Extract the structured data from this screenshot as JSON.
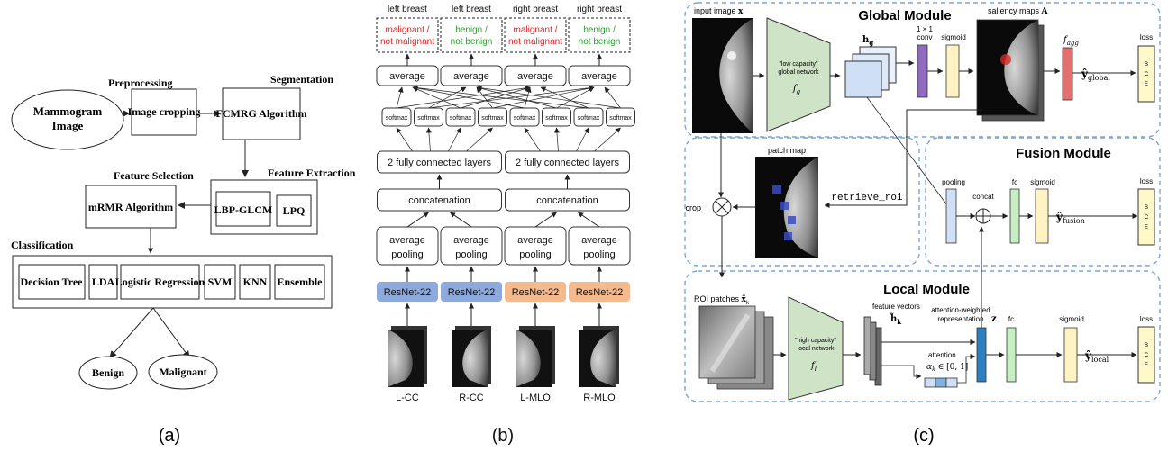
{
  "colors": {
    "red_text": "#d62728",
    "green_text": "#2ca02c",
    "resnet_blue": "#8ea9dc",
    "resnet_orange": "#f4b98c",
    "network_green": "#cfe3c6",
    "conv_purple": "#8e6bbf",
    "sigmoid_yellow": "#fff3c4",
    "fagg_red": "#e46f6f",
    "fc_green": "#c5efc3",
    "feature_blue": "#2b7fc1",
    "loss_yellow": "#fff8c8",
    "module_border": "#7aa6d9"
  },
  "panel_a": {
    "caption": "(a)",
    "mammogram": [
      "Mammogram",
      "Image"
    ],
    "preprocessing_label": "Preprocessing",
    "image_cropping": "Image cropping",
    "segmentation_label": "Segmentation",
    "fcmrg": "FCMRG Algorithm",
    "feature_extraction_label": "Feature Extraction",
    "lbp_glcm": "LBP-GLCM",
    "lpq": "LPQ",
    "feature_selection_label": "Feature Selection",
    "mrmr": "mRMR Algorithm",
    "classification_label": "Classification",
    "classifiers": [
      "Decision Tree",
      "LDA",
      "Logistic Regression",
      "SVM",
      "KNN",
      "Ensemble"
    ],
    "benign": "Benign",
    "malignant": "Malignant"
  },
  "panel_b": {
    "caption": "(b)",
    "top_titles": [
      "left breast",
      "left breast",
      "right breast",
      "right breast"
    ],
    "outputs": [
      {
        "line1": "malignant /",
        "line2": "not malignant",
        "color": "red"
      },
      {
        "line1": "benign /",
        "line2": "not benign",
        "color": "green"
      },
      {
        "line1": "malignant /",
        "line2": "not malignant",
        "color": "red"
      },
      {
        "line1": "benign /",
        "line2": "not benign",
        "color": "green"
      }
    ],
    "average": "average",
    "softmax": "softmax",
    "fc_layers": "2 fully connected layers",
    "concatenation": "concatenation",
    "avg_pool_1": "average",
    "avg_pool_2": "pooling",
    "resnet": "ResNet-22",
    "views": [
      "L-CC",
      "R-CC",
      "L-MLO",
      "R-MLO"
    ]
  },
  "panel_c": {
    "caption": "(c)",
    "global_title": "Global Module",
    "fusion_title": "Fusion Module",
    "local_title": "Local Module",
    "input_image": "input image",
    "input_sym": "x",
    "low_cap_1": "\"low capacity\"",
    "low_cap_2": "global network",
    "fg": "f",
    "fg_sub": "g",
    "hg": "h",
    "hg_sub": "g",
    "conv1": "1 × 1",
    "conv2": "conv",
    "sigmoid": "sigmoid",
    "saliency": "saliency maps",
    "saliency_sym": "A",
    "fagg": "f",
    "fagg_sub": "agg",
    "yglobal": "ŷ",
    "yglobal_sub": "global",
    "loss": "loss",
    "bce": [
      "B",
      "C",
      "E"
    ],
    "patch_map": "patch map",
    "retrieve_roi": "retrieve_roi",
    "crop": "crop",
    "pooling": "pooling",
    "concat": "concat",
    "fc": "fc",
    "yfusion": "ŷ",
    "yfusion_sub": "fusion",
    "roi_patches": "ROI patches",
    "roi_sym": "x̃",
    "roi_sub": "k",
    "high_cap_1": "\"high capacity\"",
    "high_cap_2": "local network",
    "fl": "f",
    "fl_sub": "l",
    "feature_vectors": "feature vectors",
    "hk": "h̃",
    "hk_sub": "k",
    "attn_weighted_1": "attention-weighted",
    "attn_weighted_2": "representation",
    "z": "z",
    "attention": "attention",
    "alpha": "α",
    "alpha_sub": "k",
    "alpha_range": " ∈ [0, 1]",
    "ylocal": "ŷ",
    "ylocal_sub": "local"
  }
}
